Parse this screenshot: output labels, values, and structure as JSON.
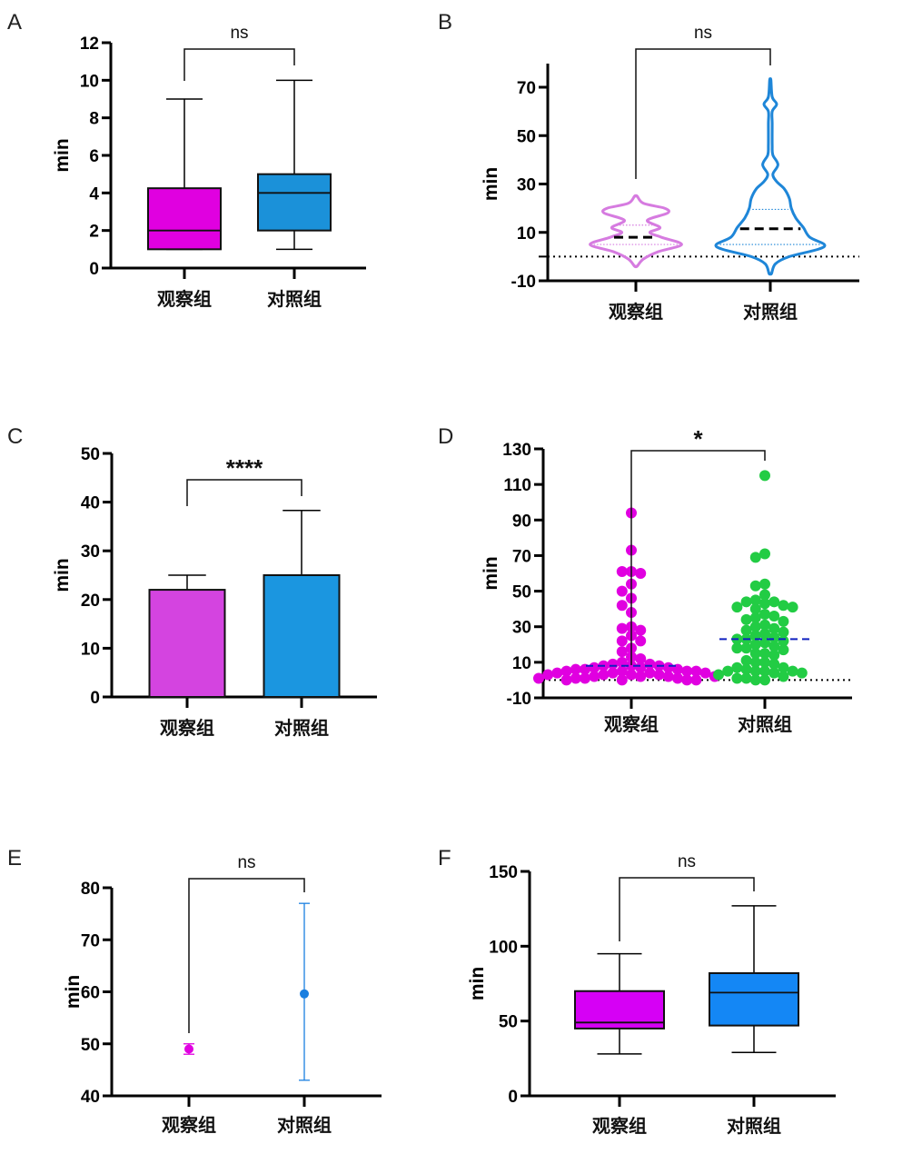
{
  "figure": {
    "panels": [
      "A",
      "B",
      "C",
      "D",
      "E",
      "F"
    ]
  },
  "chart_data": [
    {
      "id": "A",
      "type": "box",
      "title": "",
      "xlabel": "",
      "ylabel": "min",
      "ylim": [
        0,
        12
      ],
      "yticks": [
        0,
        2,
        4,
        6,
        8,
        10,
        12
      ],
      "categories": [
        "观察组",
        "对照组"
      ],
      "colors": [
        "#E000E0",
        "#1B91D9"
      ],
      "series": [
        {
          "name": "观察组",
          "min": 1,
          "q1": 1,
          "median": 2,
          "q3": 4.25,
          "max": 9
        },
        {
          "name": "对照组",
          "min": 1,
          "q1": 2,
          "median": 4,
          "q3": 5,
          "max": 10
        }
      ],
      "significance": "ns",
      "grid": false
    },
    {
      "id": "B",
      "type": "violin",
      "title": "",
      "xlabel": "",
      "ylabel": "min",
      "ylim": [
        -10,
        80
      ],
      "yticks": [
        -10,
        10,
        30,
        50,
        70
      ],
      "reference_line": 0,
      "categories": [
        "观察组",
        "对照组"
      ],
      "colors": [
        "#D67BE0",
        "#1E86D8"
      ],
      "series": [
        {
          "name": "观察组",
          "min": -4,
          "q1": 5,
          "median": 8,
          "q3": 13,
          "max": 25,
          "density_profile": [
            [
              -4,
              0.02
            ],
            [
              -1,
              0.12
            ],
            [
              2,
              0.35
            ],
            [
              5,
              0.72
            ],
            [
              8,
              0.4
            ],
            [
              10,
              0.22
            ],
            [
              12,
              0.38
            ],
            [
              15,
              0.18
            ],
            [
              18,
              0.5
            ],
            [
              20,
              0.45
            ],
            [
              22,
              0.12
            ],
            [
              25,
              0.02
            ]
          ]
        },
        {
          "name": "对照组",
          "min": -7,
          "q1": 5,
          "median": 11.5,
          "q3": 19.5,
          "max": 73,
          "density_profile": [
            [
              -7,
              0.02
            ],
            [
              -3,
              0.08
            ],
            [
              0,
              0.3
            ],
            [
              3,
              0.75
            ],
            [
              5,
              0.85
            ],
            [
              8,
              0.62
            ],
            [
              12,
              0.52
            ],
            [
              16,
              0.4
            ],
            [
              20,
              0.33
            ],
            [
              24,
              0.3
            ],
            [
              28,
              0.22
            ],
            [
              31,
              0.1
            ],
            [
              34,
              0.04
            ],
            [
              38,
              0.12
            ],
            [
              42,
              0.04
            ],
            [
              46,
              0.03
            ],
            [
              55,
              0.03
            ],
            [
              60,
              0.03
            ],
            [
              63,
              0.1
            ],
            [
              66,
              0.03
            ],
            [
              73,
              0.01
            ]
          ]
        }
      ],
      "significance": "ns",
      "grid": false
    },
    {
      "id": "C",
      "type": "bar",
      "title": "",
      "xlabel": "",
      "ylabel": "min",
      "ylim": [
        0,
        50
      ],
      "yticks": [
        0,
        10,
        20,
        30,
        40,
        50
      ],
      "categories": [
        "观察组",
        "对照组"
      ],
      "colors": [
        "#D444E0",
        "#1B96E0"
      ],
      "values": [
        22,
        25
      ],
      "error_upper": [
        25,
        38.3
      ],
      "significance": "****",
      "grid": false
    },
    {
      "id": "D",
      "type": "scatter",
      "title": "",
      "xlabel": "",
      "ylabel": "min",
      "ylim": [
        -10,
        130
      ],
      "yticks": [
        -10,
        10,
        30,
        50,
        70,
        90,
        110,
        130
      ],
      "reference_line": 0,
      "categories": [
        "观察组",
        "对照组"
      ],
      "colors": [
        "#E000E0",
        "#22CC44"
      ],
      "median_line_color": "#1020C0",
      "series": [
        {
          "name": "观察组",
          "median": 8,
          "values": [
            94,
            73,
            61,
            61,
            60,
            54,
            50,
            46,
            42,
            38,
            30,
            29,
            28,
            25,
            22,
            22,
            18,
            16,
            13,
            12,
            10,
            9,
            9,
            8,
            8,
            8,
            7,
            7,
            7,
            6,
            6,
            6,
            5,
            5,
            5,
            5,
            4,
            4,
            4,
            4,
            3,
            3,
            3,
            3,
            2,
            2,
            2,
            2,
            1,
            1,
            1,
            1,
            0,
            0,
            0,
            0
          ]
        },
        {
          "name": "对照组",
          "median": 23,
          "values": [
            115,
            71,
            69,
            54,
            53,
            48,
            45,
            44,
            44,
            43,
            42,
            41,
            41,
            40,
            37,
            36,
            35,
            34,
            33,
            31,
            30,
            29,
            28,
            27,
            26,
            25,
            24,
            23,
            23,
            22,
            21,
            20,
            19,
            18,
            18,
            17,
            15,
            15,
            14,
            11,
            10,
            10,
            9,
            7,
            7,
            6,
            5,
            5,
            5,
            5,
            4,
            4,
            3,
            2,
            1,
            1,
            0,
            0
          ]
        }
      ],
      "significance": "*",
      "grid": false
    },
    {
      "id": "E",
      "type": "scatter",
      "title": "",
      "xlabel": "",
      "ylabel": "min",
      "ylim": [
        40,
        80
      ],
      "yticks": [
        40,
        50,
        60,
        70,
        80
      ],
      "categories": [
        "观察组",
        "对照组"
      ],
      "colors": [
        "#E000E0",
        "#1A7FE0"
      ],
      "series": [
        {
          "name": "观察组",
          "mean": 49,
          "error_low": 48,
          "error_high": 50
        },
        {
          "name": "对照组",
          "mean": 59.6,
          "error_low": 43,
          "error_high": 77
        }
      ],
      "significance": "ns",
      "grid": false
    },
    {
      "id": "F",
      "type": "box",
      "title": "",
      "xlabel": "",
      "ylabel": "min",
      "ylim": [
        0,
        150
      ],
      "yticks": [
        0,
        50,
        100,
        150
      ],
      "categories": [
        "观察组",
        "对照组"
      ],
      "colors": [
        "#D600F5",
        "#1487F5"
      ],
      "series": [
        {
          "name": "观察组",
          "min": 28,
          "q1": 45,
          "median": 49,
          "q3": 70,
          "max": 95
        },
        {
          "name": "对照组",
          "min": 29,
          "q1": 47,
          "median": 69,
          "q3": 82,
          "max": 127
        }
      ],
      "significance": "ns",
      "grid": false
    }
  ]
}
